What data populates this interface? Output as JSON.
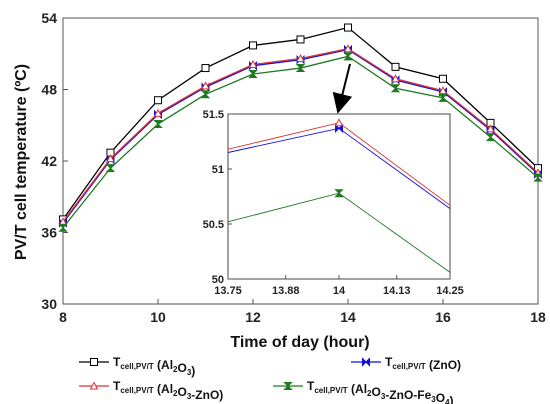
{
  "chart_data": {
    "type": "line",
    "xlabel": "Time of day (hour)",
    "ylabel": "PV/T cell temperature (ºC)",
    "xlim": [
      8,
      18
    ],
    "ylim": [
      30,
      54
    ],
    "x_ticks": [
      "8",
      "10",
      "12",
      "14",
      "16",
      "18"
    ],
    "y_ticks": [
      "30",
      "36",
      "42",
      "48",
      "54"
    ],
    "x": [
      8,
      9,
      10,
      11,
      12,
      13,
      14,
      15,
      16,
      17,
      18
    ],
    "series": [
      {
        "name": "Tcell,PV/T (Al2O3)",
        "legend": {
          "main": "T",
          "sub": "cell,PV/T",
          "rest": " (Al",
          "rest_sub1": "2",
          "rest_mid": "O",
          "rest_sub2": "3",
          "rest_end": ")"
        },
        "color": "#000000",
        "marker": "square",
        "values": [
          37.1,
          42.7,
          47.1,
          49.8,
          51.7,
          52.2,
          53.2,
          49.9,
          48.9,
          45.2,
          41.4
        ]
      },
      {
        "name": "Tcell,PV/T (ZnO)",
        "legend": {
          "main": "T",
          "sub": "cell,PV/T",
          "rest": " (ZnO)"
        },
        "color": "#1010e0",
        "marker": "bowtie",
        "values": [
          36.8,
          42.1,
          45.9,
          48.2,
          50.0,
          50.5,
          51.35,
          48.8,
          47.8,
          44.6,
          40.9
        ]
      },
      {
        "name": "Tcell,PV/T (Al2O3-ZnO)",
        "legend": {
          "main": "T",
          "sub": "cell,PV/T",
          "rest": " (Al",
          "rest_sub1": "2",
          "rest_mid": "O",
          "rest_sub2": "3",
          "rest_end": "-ZnO)"
        },
        "color": "#e03030",
        "marker": "triangle",
        "values": [
          36.9,
          42.2,
          46.0,
          48.3,
          50.1,
          50.6,
          51.42,
          48.9,
          47.9,
          44.7,
          41.0
        ]
      },
      {
        "name": "Tcell,PV/T (Al2O3-ZnO-Fe3O4)",
        "legend": {
          "main": "T",
          "sub": "cell,PV/T",
          "rest": " (Al",
          "rest_sub1": "2",
          "rest_mid": "O",
          "rest_sub2": "3",
          "rest_end": "-ZnO-Fe",
          "rest_sub3": "3",
          "rest_end2": "O",
          "rest_sub4": "4",
          "rest_end3": ")"
        },
        "color": "#1e7a1e",
        "marker": "hourglass",
        "values": [
          36.4,
          41.4,
          45.1,
          47.6,
          49.3,
          49.8,
          50.78,
          48.1,
          47.3,
          44.0,
          40.6
        ]
      }
    ],
    "inset": {
      "type": "line",
      "xlim": [
        13.75,
        14.25
      ],
      "ylim": [
        50,
        51.5
      ],
      "x_ticks": [
        "13.75",
        "13.88",
        "14",
        "14.13",
        "14.25"
      ],
      "y_ticks": [
        "50",
        "50.5",
        "51",
        "51.5"
      ],
      "x": [
        13.75,
        14,
        14.25
      ],
      "series": [
        {
          "name": "Tcell,PV/T (ZnO)",
          "color": "#1010e0",
          "marker": "bowtie",
          "values": [
            51.15,
            51.37,
            50.64
          ]
        },
        {
          "name": "Tcell,PV/T (Al2O3-ZnO)",
          "color": "#e03030",
          "marker": "triangle",
          "values": [
            51.18,
            51.42,
            50.67
          ]
        },
        {
          "name": "Tcell,PV/T (Al2O3-ZnO-Fe3O4)",
          "color": "#1e7a1e",
          "marker": "hourglass",
          "values": [
            50.52,
            50.78,
            50.06
          ]
        }
      ]
    },
    "grid": false,
    "legend_position": "bottom"
  }
}
